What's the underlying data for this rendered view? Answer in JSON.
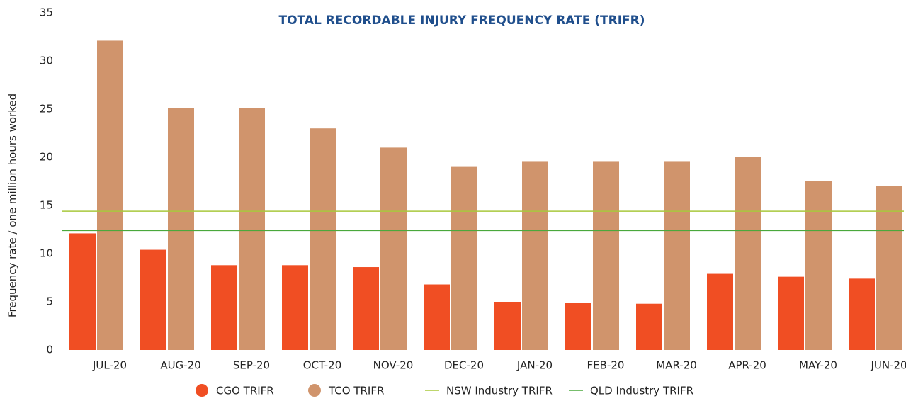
{
  "chart_data": {
    "type": "bar",
    "title": "TOTAL RECORDABLE INJURY FREQUENCY RATE (TRIFR)",
    "y_label": "Frequency rate / one million hours worked",
    "categories": [
      "JUL-20",
      "AUG-20",
      "SEP-20",
      "OCT-20",
      "NOV-20",
      "DEC-20",
      "JAN-20",
      "FEB-20",
      "MAR-20",
      "APR-20",
      "MAY-20",
      "JUN-20"
    ],
    "series": [
      {
        "name": "CGO TRIFR",
        "color": "#f04e23",
        "values": [
          12.1,
          10.4,
          8.8,
          8.8,
          8.6,
          6.8,
          5.0,
          4.9,
          4.8,
          7.9,
          7.6,
          7.4
        ]
      },
      {
        "name": "TCO TRIFR",
        "color": "#d0946c",
        "values": [
          32.1,
          25.1,
          25.1,
          23.0,
          21.0,
          19.0,
          19.6,
          19.6,
          19.6,
          20.0,
          17.5,
          17.0
        ]
      }
    ],
    "reference_lines": [
      {
        "name": "NSW Industry TRIFR",
        "color": "#a8c83c",
        "value": 14.4
      },
      {
        "name": "QLD Industry TRIFR",
        "color": "#4aa83c",
        "value": 12.4
      }
    ],
    "ylim": [
      0,
      35
    ],
    "yticks": [
      0,
      5,
      10,
      15,
      20,
      25,
      30,
      35
    ],
    "grid": false
  }
}
